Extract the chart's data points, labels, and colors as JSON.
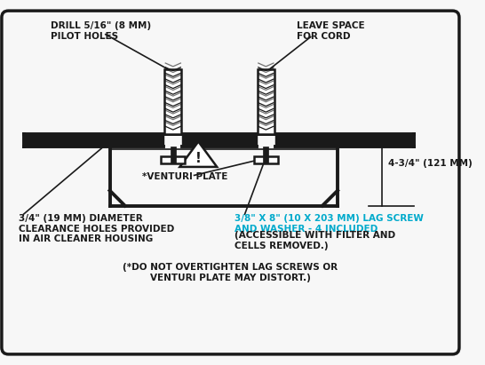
{
  "bg_color": "#f7f7f7",
  "line_color": "#1a1a1a",
  "cyan_color": "#00aacc",
  "text_color": "#1a1a1a",
  "label_drill": "DRILL 5/16\" (8 MM)\nPILOT HOLES",
  "label_cord": "LEAVE SPACE\nFOR CORD",
  "label_dimension": "4-3/4\" (121 MM)",
  "label_venturi": "*VENTURI PLATE",
  "label_clearance": "3/4\" (19 MM) DIAMETER\nCLEARANCE HOLES PROVIDED\nIN AIR CLEANER HOUSING",
  "label_lagscrew_cyan": "3/8\" X 8\" (10 X 203 MM) LAG SCREW\nAND WASHER - 4 INCLUDED",
  "label_lagscrew_black": "(ACCESSIBLE WITH FILTER AND\nCELLS REMOVED.)",
  "label_warning": "(*DO NOT OVERTIGHTEN LAG SCREWS OR\nVENTURI PLATE MAY DISTORT.)"
}
